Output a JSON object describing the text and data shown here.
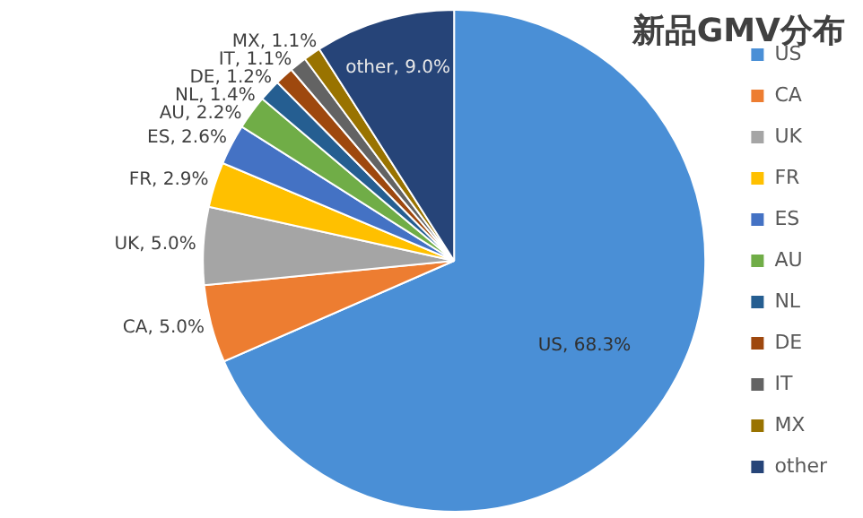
{
  "chart_data": {
    "type": "pie",
    "title": "新品GMV分布",
    "categories": [
      "US",
      "CA",
      "UK",
      "FR",
      "ES",
      "AU",
      "NL",
      "DE",
      "IT",
      "MX",
      "other"
    ],
    "values": [
      68.3,
      5.0,
      5.0,
      2.9,
      2.6,
      2.2,
      1.4,
      1.2,
      1.1,
      1.1,
      9.0
    ],
    "colors": [
      "#4a8fd6",
      "#ed7d31",
      "#a5a5a5",
      "#ffc000",
      "#4472c4",
      "#70ad47",
      "#255e91",
      "#9e480e",
      "#636363",
      "#997300",
      "#264478"
    ],
    "value_labels": [
      "US, 68.3%",
      "CA, 5.0%",
      "UK, 5.0%",
      "FR, 2.9%",
      "ES, 2.6%",
      "AU, 2.2%",
      "NL, 1.4%",
      "DE, 1.2%",
      "IT, 1.1%",
      "MX, 1.1%",
      "other, 9.0%"
    ],
    "legend": "right"
  }
}
